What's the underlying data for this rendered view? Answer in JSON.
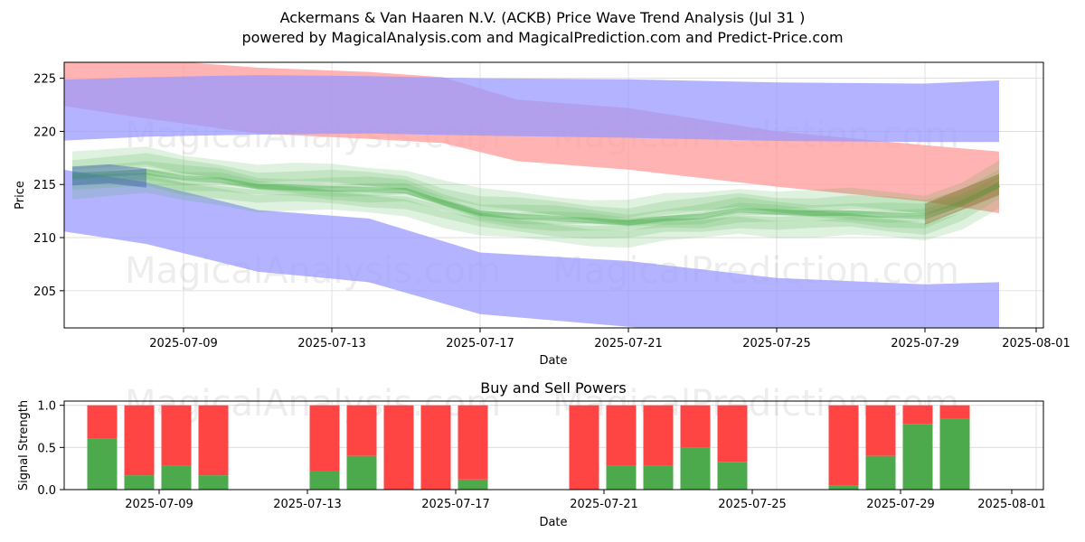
{
  "title": "Ackermans & Van Haaren N.V. (ACKB) Price Wave Trend Analysis (Jul 31 )",
  "subtitle": "powered by MagicalAnalysis.com and MagicalPrediction.com and Predict-Price.com",
  "watermarks": [
    "MagicalAnalysis.com",
    "MagicalPrediction.com"
  ],
  "colors": {
    "upper_band": "#ff9999",
    "blue_band": "#9999ff",
    "green_wave": "#4caf50",
    "brown_wave": "#8b6a2b",
    "buy": "#4caa4c",
    "sell": "#ff4444"
  },
  "chart_data": [
    {
      "type": "area",
      "title": "",
      "xlabel": "Date",
      "ylabel": "Price",
      "ylim": [
        201.5,
        226.5
      ],
      "xlim": [
        "2025-07-05",
        "2025-08-01"
      ],
      "grid": true,
      "x_ticks": [
        "2025-07-09",
        "2025-07-13",
        "2025-07-17",
        "2025-07-21",
        "2025-07-25",
        "2025-07-29",
        "2025-08-01"
      ],
      "y_ticks": [
        205,
        210,
        215,
        220,
        225
      ],
      "series": [
        {
          "kind": "band",
          "color": "red",
          "x": [
            "2025-07-05",
            "2025-07-08",
            "2025-07-11",
            "2025-07-14",
            "2025-07-16",
            "2025-07-18",
            "2025-07-21",
            "2025-07-25",
            "2025-07-29",
            "2025-07-31"
          ],
          "upper": [
            227.0,
            226.8,
            226.0,
            225.6,
            225.1,
            223.0,
            222.2,
            220.0,
            218.7,
            218.1
          ],
          "lower": [
            222.8,
            221.2,
            219.8,
            219.3,
            218.9,
            217.2,
            216.4,
            214.8,
            213.4,
            212.3
          ]
        },
        {
          "kind": "band",
          "color": "blue",
          "x": [
            "2025-07-05",
            "2025-07-08",
            "2025-07-11",
            "2025-07-14",
            "2025-07-17",
            "2025-07-21",
            "2025-07-25",
            "2025-07-29",
            "2025-07-31"
          ],
          "upper": [
            224.8,
            225.1,
            225.3,
            225.2,
            225.0,
            224.9,
            224.6,
            224.5,
            224.8
          ],
          "lower": [
            219.0,
            219.5,
            219.7,
            219.8,
            219.6,
            219.4,
            219.1,
            219.0,
            219.0
          ]
        },
        {
          "kind": "band",
          "color": "blue",
          "x": [
            "2025-07-05",
            "2025-07-08",
            "2025-07-11",
            "2025-07-14",
            "2025-07-17",
            "2025-07-21",
            "2025-07-25",
            "2025-07-29",
            "2025-07-31"
          ],
          "upper": [
            216.8,
            215.2,
            212.6,
            211.8,
            208.6,
            207.8,
            206.2,
            205.6,
            205.8
          ],
          "lower": [
            211.0,
            209.4,
            206.8,
            205.8,
            202.8,
            201.6,
            200.5,
            200.2,
            200.1
          ]
        },
        {
          "kind": "wave",
          "color": "green",
          "x": [
            "2025-07-06",
            "2025-07-08",
            "2025-07-09",
            "2025-07-10",
            "2025-07-11",
            "2025-07-12",
            "2025-07-13",
            "2025-07-14",
            "2025-07-15",
            "2025-07-16",
            "2025-07-17",
            "2025-07-18",
            "2025-07-19",
            "2025-07-20",
            "2025-07-21",
            "2025-07-22",
            "2025-07-23",
            "2025-07-24",
            "2025-07-25",
            "2025-07-26",
            "2025-07-27",
            "2025-07-28",
            "2025-07-29",
            "2025-07-30",
            "2025-07-31"
          ],
          "values": [
            215.8,
            216.2,
            215.6,
            215.4,
            214.8,
            214.7,
            214.6,
            214.5,
            214.4,
            213.3,
            212.3,
            212.0,
            211.8,
            211.6,
            211.4,
            211.8,
            212.0,
            212.6,
            212.4,
            212.3,
            212.3,
            212.1,
            212.0,
            213.2,
            215.0
          ]
        }
      ]
    },
    {
      "type": "bar",
      "title": "Buy and Sell Powers",
      "xlabel": "Date",
      "ylabel": "Signal Strength",
      "ylim": [
        0,
        1.05
      ],
      "grid": true,
      "x_ticks": [
        "2025-07-09",
        "2025-07-13",
        "2025-07-17",
        "2025-07-21",
        "2025-07-25",
        "2025-07-29",
        "2025-08-01"
      ],
      "y_ticks": [
        "0.0",
        "0.5",
        "1.0"
      ],
      "categories": [
        "2025-07-08",
        "2025-07-09",
        "2025-07-10",
        "2025-07-11",
        "2025-07-14",
        "2025-07-15",
        "2025-07-16",
        "2025-07-17",
        "2025-07-18",
        "2025-07-21",
        "2025-07-22",
        "2025-07-23",
        "2025-07-24",
        "2025-07-25",
        "2025-07-28",
        "2025-07-29",
        "2025-07-30",
        "2025-07-31"
      ],
      "series": [
        {
          "name": "Buy",
          "values": [
            0.61,
            0.17,
            0.28,
            0.17,
            0.22,
            0.4,
            0.0,
            0.0,
            0.12,
            0.0,
            0.28,
            0.28,
            0.5,
            0.33,
            0.05,
            0.4,
            0.78,
            0.84
          ]
        },
        {
          "name": "Sell",
          "values": [
            0.39,
            0.83,
            0.72,
            0.83,
            0.78,
            0.6,
            1.0,
            1.0,
            0.88,
            1.0,
            0.72,
            0.72,
            0.5,
            0.67,
            0.95,
            0.6,
            0.22,
            0.16
          ]
        }
      ]
    }
  ]
}
